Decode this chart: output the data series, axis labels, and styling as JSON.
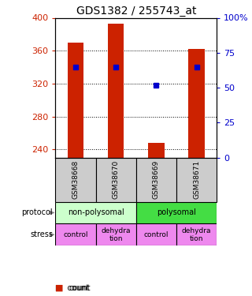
{
  "title": "GDS1382 / 255743_at",
  "samples": [
    "GSM38668",
    "GSM38670",
    "GSM38669",
    "GSM38671"
  ],
  "count_values": [
    370,
    393,
    248,
    362
  ],
  "percentile_values": [
    65,
    65,
    52,
    65
  ],
  "ylim_left": [
    230,
    400
  ],
  "ylim_right": [
    0,
    100
  ],
  "yticks_left": [
    240,
    280,
    320,
    360,
    400
  ],
  "yticks_right": [
    0,
    25,
    50,
    75,
    100
  ],
  "ytick_labels_right": [
    "0",
    "25",
    "50",
    "75",
    "100%"
  ],
  "bar_color": "#cc2200",
  "dot_color": "#0000cc",
  "protocol_labels": [
    "non-polysomal",
    "polysomal"
  ],
  "protocol_color_left": "#ccffcc",
  "protocol_color_right": "#44dd44",
  "stress_labels": [
    "control",
    "dehydra\ntion",
    "control",
    "dehydra\ntion"
  ],
  "stress_color": "#ee88ee",
  "sample_box_color": "#cccccc",
  "title_fontsize": 10,
  "axis_label_color_left": "#cc2200",
  "axis_label_color_right": "#0000cc",
  "bar_width": 0.4
}
